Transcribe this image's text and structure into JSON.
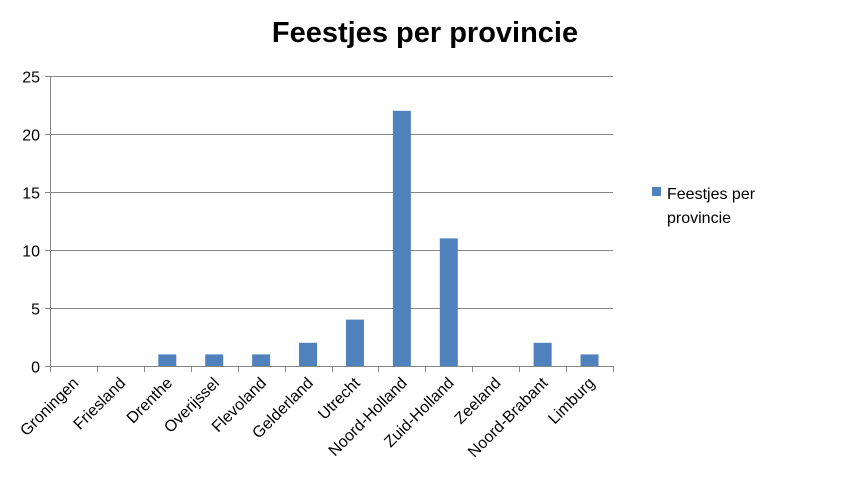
{
  "chart_data": {
    "type": "bar",
    "title": "Feestjes per provincie",
    "categories": [
      "Groningen",
      "Friesland",
      "Drenthe",
      "Overijssel",
      "Flevoland",
      "Gelderland",
      "Utrecht",
      "Noord-Holland",
      "Zuid-Holland",
      "Zeeland",
      "Noord-Brabant",
      "Limburg"
    ],
    "series": [
      {
        "name": "Feestjes per provincie",
        "values": [
          0,
          0,
          1,
          1,
          1,
          2,
          4,
          22,
          11,
          0,
          2,
          1
        ],
        "color": "#4f81bd"
      }
    ],
    "yticks": [
      "0",
      "5",
      "10",
      "15",
      "20",
      "25"
    ],
    "ylim": [
      0,
      25
    ],
    "grid": true,
    "legend": "right",
    "xlabel": "",
    "ylabel": ""
  }
}
